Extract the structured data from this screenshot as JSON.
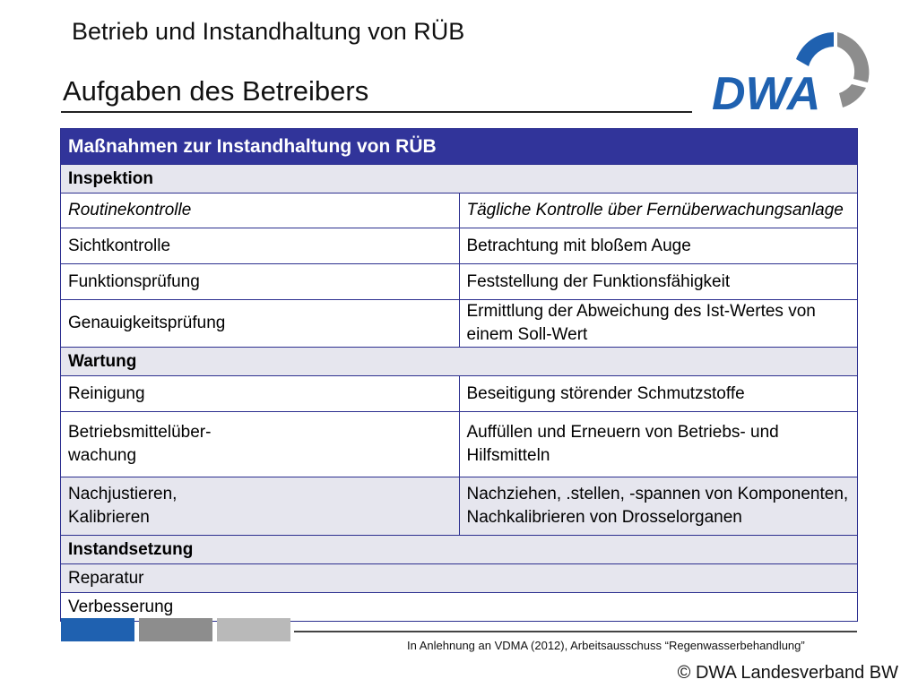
{
  "header": {
    "title": "Betrieb und Instandhaltung von RÜB",
    "subtitle": "Aufgaben des Betreibers",
    "logo_text": "DWA"
  },
  "table": {
    "heading": "Maßnahmen zur Instandhaltung von RÜB",
    "sections": [
      {
        "name": "Inspektion",
        "rows": [
          {
            "term": "Routinekontrolle",
            "description": "Tägliche Kontrolle über Fernüberwachungsanlage",
            "italic": true
          },
          {
            "term": "Sichtkontrolle",
            "description": "Betrachtung mit bloßem Auge"
          },
          {
            "term": "Funktionsprüfung",
            "description": "Feststellung der Funktionsfähigkeit"
          },
          {
            "term": "Genauigkeitsprüfung",
            "description": "Ermittlung der Abweichung des Ist-Wertes von einem Soll-Wert"
          }
        ]
      },
      {
        "name": "Wartung",
        "rows": [
          {
            "term": "Reinigung",
            "description": "Beseitigung störender Schmutzstoffe"
          },
          {
            "term": "Betriebsmittelüber-\nwachung",
            "description": "Auffüllen und Erneuern von Betriebs- und Hilfsmitteln"
          },
          {
            "term": "Nachjustieren,\nKalibrieren",
            "description": "Nachziehen, .stellen, -spannen von Komponenten,\nNachkalibrieren von Drosselorganen"
          }
        ]
      },
      {
        "name": "Instandsetzung",
        "rows": [
          {
            "term": "Reparatur",
            "description": ""
          },
          {
            "term": "Verbesserung",
            "description": ""
          }
        ]
      }
    ]
  },
  "footer": {
    "source": "In Anlehnung an VDMA (2012), Arbeitsausschuss “Regenwasserbehandlung”",
    "copyright": "© DWA Landesverband BW"
  },
  "colors": {
    "table_header": "#31349a",
    "section_bg": "#e6e6ee",
    "logo_blue": "#1f61b0",
    "logo_gray": "#8d8d8d"
  }
}
